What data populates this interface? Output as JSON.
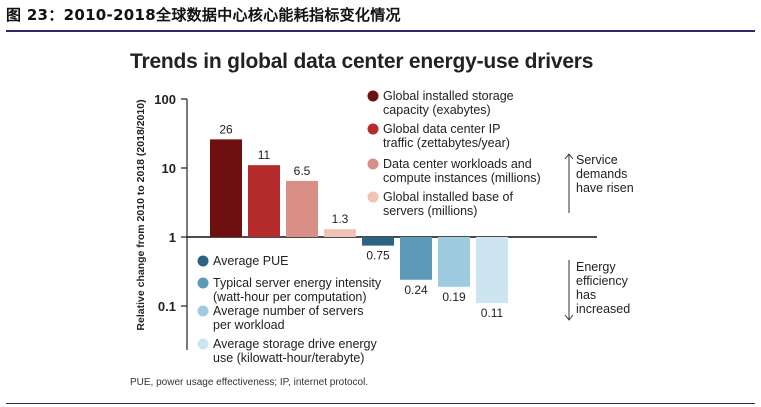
{
  "figure_title": "图 23：2010-2018全球数据中心核心能耗指标变化情况",
  "footnote": "PUE, power usage effectiveness; IP, internet protocol.",
  "colors": {
    "storage": "#6e1010",
    "ip_traffic": "#b52a2a",
    "workloads": "#d98f85",
    "servers": "#efc4b4",
    "pue": "#2a6480",
    "energy_intensity": "#5b9ab8",
    "servers_per_workload": "#9ecbe0",
    "storage_energy": "#cde5f1",
    "rule": "#2b2b6b"
  },
  "chart_data": {
    "type": "bar",
    "title": "Trends in global data center energy-use drivers",
    "ylabel": "Relative change from 2010 to 2018 (2018/2010)",
    "yscale": "log",
    "ylim": [
      0.05,
      100
    ],
    "yticks": [
      {
        "value": 100,
        "label": "100"
      },
      {
        "value": 10,
        "label": "10"
      },
      {
        "value": 1,
        "label": "1"
      },
      {
        "value": 0.1,
        "label": "0.1"
      }
    ],
    "baseline": 1,
    "series": [
      {
        "name": "Global installed storage capacity (exabytes)",
        "value": 26,
        "label": "26",
        "color_key": "storage",
        "group": "up"
      },
      {
        "name": "Global data center IP traffic (zettabytes/year)",
        "value": 11,
        "label": "11",
        "color_key": "ip_traffic",
        "group": "up"
      },
      {
        "name": "Data center workloads and compute instances (millions)",
        "value": 6.5,
        "label": "6.5",
        "color_key": "workloads",
        "group": "up"
      },
      {
        "name": "Global installed base of servers (millions)",
        "value": 1.3,
        "label": "1.3",
        "color_key": "servers",
        "group": "up"
      },
      {
        "name": "Average PUE",
        "value": 0.75,
        "label": "0.75",
        "color_key": "pue",
        "group": "down"
      },
      {
        "name": "Typical server energy intensity (watt-hour per computation)",
        "value": 0.24,
        "label": "0.24",
        "color_key": "energy_intensity",
        "group": "down"
      },
      {
        "name": "Average number of servers per workload",
        "value": 0.19,
        "label": "0.19",
        "color_key": "servers_per_workload",
        "group": "down"
      },
      {
        "name": "Average storage drive energy use (kilowatt-hour/terabyte)",
        "value": 0.11,
        "label": "0.11",
        "color_key": "storage_energy",
        "group": "down"
      }
    ],
    "legend_upper": [
      [
        "Global installed storage",
        "capacity (exabytes)"
      ],
      [
        "Global data center IP",
        "traffic (zettabytes/year)"
      ],
      [
        "Data center workloads and",
        "compute instances (millions)"
      ],
      [
        "Global installed base of",
        "servers (millions)"
      ]
    ],
    "legend_lower": [
      [
        "Average PUE"
      ],
      [
        "Typical server energy intensity",
        "(watt-hour per computation)"
      ],
      [
        "Average number of servers",
        "per workload"
      ],
      [
        "Average storage drive energy",
        "use (kilowatt-hour/terabyte)"
      ]
    ],
    "annotations": [
      {
        "lines": [
          "Service",
          "demands",
          "have risen"
        ],
        "direction": "up"
      },
      {
        "lines": [
          "Energy",
          "efficiency",
          "has",
          "increased"
        ],
        "direction": "down"
      }
    ]
  }
}
